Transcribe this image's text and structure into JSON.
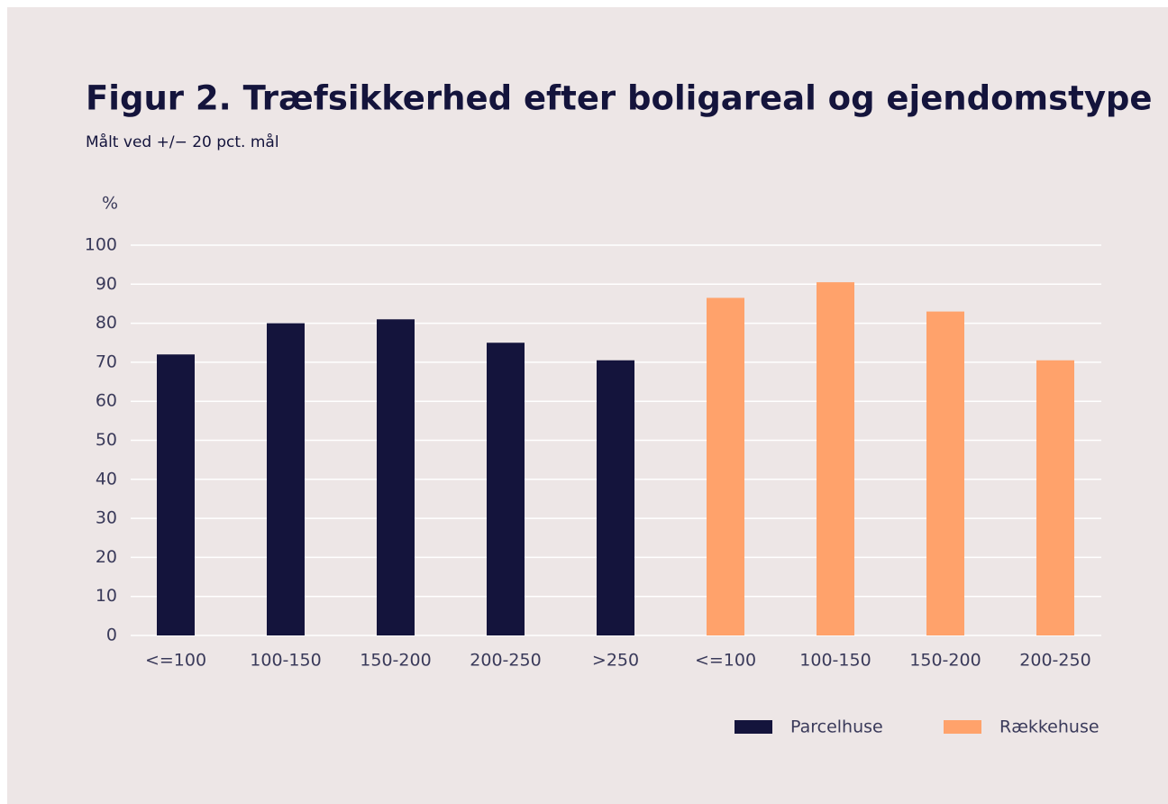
{
  "chart_data": {
    "type": "bar",
    "title": "Figur 2. Træfsikkerhed efter boligareal og ejendomstype",
    "subtitle": "Målt ved +/− 20 pct. mål",
    "y_axis_label": "%",
    "categories": [
      "<=100",
      "100-150",
      "150-200",
      "200-250",
      ">250",
      "<=100",
      "100-150",
      "150-200",
      "200-250"
    ],
    "series": [
      {
        "name": "Parcelhuse",
        "color": "#14143c",
        "values": [
          72,
          80,
          81,
          75,
          70.5,
          null,
          null,
          null,
          null
        ]
      },
      {
        "name": "Rækkehuse",
        "color": "#ffa26b",
        "values": [
          null,
          null,
          null,
          null,
          null,
          86.5,
          90.5,
          83,
          70.5
        ]
      }
    ],
    "ylim": [
      0,
      100
    ],
    "yticks": [
      0,
      10,
      20,
      30,
      40,
      50,
      60,
      70,
      80,
      90,
      100
    ],
    "grid": true,
    "legend": "bottom-right"
  }
}
